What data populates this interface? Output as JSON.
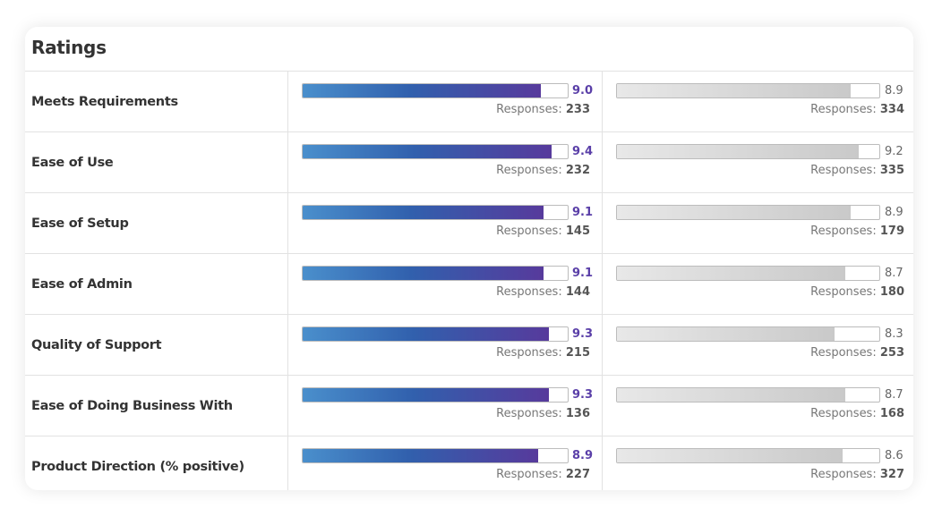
{
  "title": "Ratings",
  "responses_label": "Responses:",
  "colors": {
    "primary_bar_start": "#4a8fcc",
    "primary_bar_end": "#573a9c",
    "primary_value": "#5a3fa8",
    "comparison_bar": "#c9c9c9"
  },
  "scale_max": 10,
  "rows": [
    {
      "label": "Meets Requirements",
      "primary": {
        "score": "9.0",
        "responses": "233"
      },
      "comparison": {
        "score": "8.9",
        "responses": "334"
      }
    },
    {
      "label": "Ease of Use",
      "primary": {
        "score": "9.4",
        "responses": "232"
      },
      "comparison": {
        "score": "9.2",
        "responses": "335"
      }
    },
    {
      "label": "Ease of Setup",
      "primary": {
        "score": "9.1",
        "responses": "145"
      },
      "comparison": {
        "score": "8.9",
        "responses": "179"
      }
    },
    {
      "label": "Ease of Admin",
      "primary": {
        "score": "9.1",
        "responses": "144"
      },
      "comparison": {
        "score": "8.7",
        "responses": "180"
      }
    },
    {
      "label": "Quality of Support",
      "primary": {
        "score": "9.3",
        "responses": "215"
      },
      "comparison": {
        "score": "8.3",
        "responses": "253"
      }
    },
    {
      "label": "Ease of Doing Business With",
      "primary": {
        "score": "9.3",
        "responses": "136"
      },
      "comparison": {
        "score": "8.7",
        "responses": "168"
      }
    },
    {
      "label": "Product Direction (% positive)",
      "primary": {
        "score": "8.9",
        "responses": "227"
      },
      "comparison": {
        "score": "8.6",
        "responses": "327"
      }
    }
  ]
}
